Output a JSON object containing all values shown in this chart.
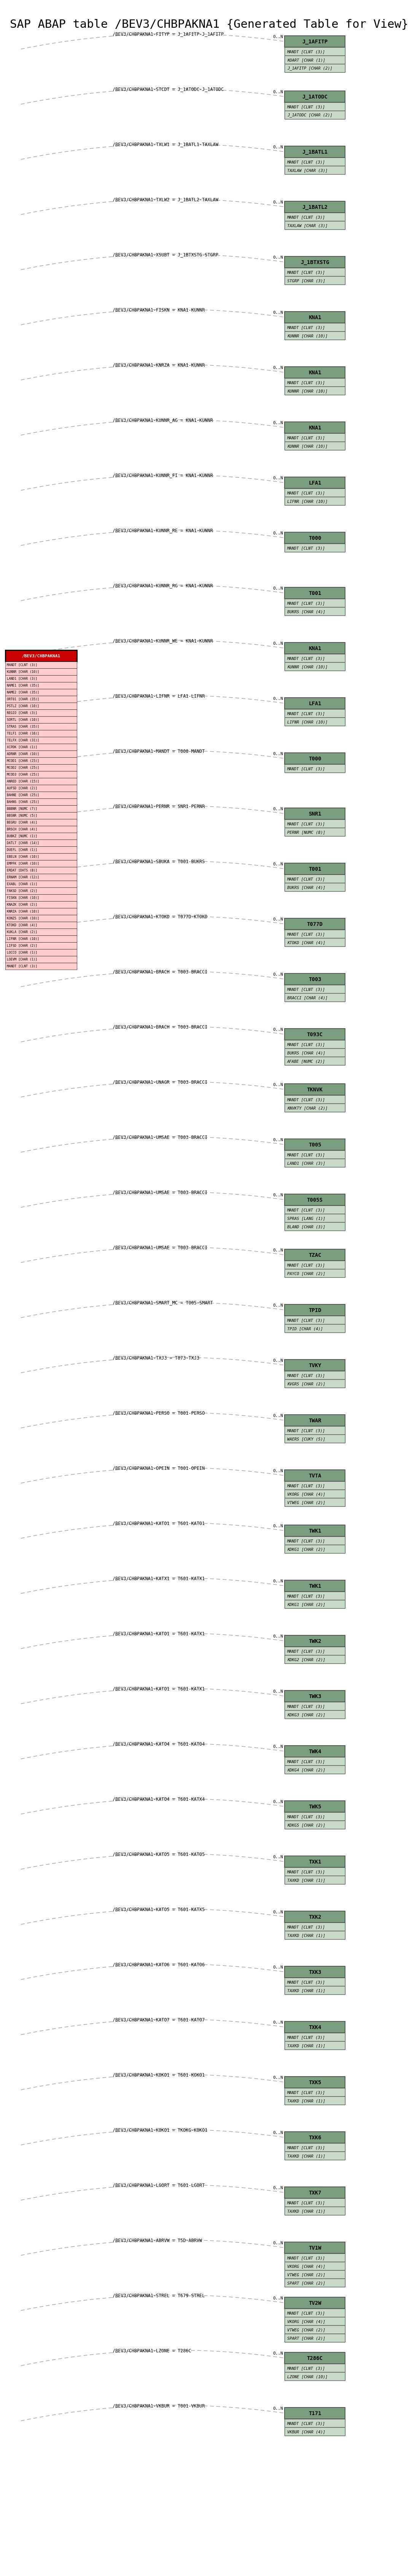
{
  "title": "SAP ABAP table /BEV3/CHBPAKNA1 {Generated Table for View}",
  "title_fontsize": 22,
  "bg_color": "#ffffff",
  "main_table": "/BEV3/CHBPAKNA1",
  "main_table_color": "#cc0000",
  "main_table_header_color": "#cc0000",
  "box_header_color": "#7a9e7e",
  "box_field_color": "#c8dac8",
  "box_border_color": "#555555",
  "line_color": "#aaaaaa",
  "relations": [
    {
      "label": "/BEV3/CHBPAKNA1-FITYP = J_1AFITP-J_1AFITP",
      "table_name": "J_1AFITP",
      "fields": [
        "MANDT [CLNT (3)]",
        "KOART [CHAR (1)]",
        "J_1AFITP [CHAR (2)]"
      ],
      "key_fields": [
        "MANDT",
        "KOART",
        "J_1AFITP"
      ],
      "cardinality": "0..N"
    },
    {
      "label": "/BEV3/CHBPAKNA1-STCDT = J_1ATODC-J_1ATODC",
      "table_name": "J_1ATODC",
      "fields": [
        "MANDT [CLNT (3)]",
        "J_1ATODC [CHAR (2)]"
      ],
      "key_fields": [
        "MANDT",
        "J_1ATODC"
      ],
      "cardinality": "0..N"
    },
    {
      "label": "/BEV3/CHBPAKNA1-TXLW1 = J_1BATL1-TAXLAW",
      "table_name": "J_1BATL1",
      "fields": [
        "MANDT [CLNT (3)]",
        "TAXLAW [CHAR (3)]"
      ],
      "key_fields": [
        "MANDT",
        "TAXLAW"
      ],
      "cardinality": "0..N"
    },
    {
      "label": "/BEV3/CHBPAKNA1-TXLW2 = J_1BATL2-TAXLAW",
      "table_name": "J_1BATL2",
      "fields": [
        "MANDT [CLNT (3)]",
        "TAXLAW [CHAR (3)]"
      ],
      "key_fields": [
        "MANDT",
        "TAXLAW"
      ],
      "cardinality": "0..N"
    },
    {
      "label": "/BEV3/CHBPAKNA1-XSUBT = J_1BTXSTG-STGRP",
      "table_name": "J_1BTXSTG",
      "fields": [
        "MANDT [CLNT (3)]",
        "STGRP [CHAR (3)]"
      ],
      "key_fields": [
        "MANDT",
        "STGRP"
      ],
      "cardinality": "0..N"
    },
    {
      "label": "/BEV3/CHBPAKNA1-FISKN = KNA1-KUNNR",
      "table_name": "KNA1",
      "fields": [
        "MANDT [CLNT (3)]",
        "KUNNR [CHAR (10)]"
      ],
      "key_fields": [
        "MANDT",
        "KUNNR"
      ],
      "cardinality": "0..N"
    },
    {
      "label": "/BEV3/CHBPAKNA1-KNRZA = KNA1-KUNNR",
      "table_name": "KNA1",
      "fields": [
        "MANDT [CLNT (3)]",
        "KUNNR [CHAR (10)]"
      ],
      "key_fields": [
        "MANDT",
        "KUNNR"
      ],
      "cardinality": "0..N"
    },
    {
      "label": "/BEV3/CHBPAKNA1-KUNNR_AG = KNA1-KUNNR",
      "table_name": "KNA1",
      "fields": [
        "MANDT [CLNT (3)]",
        "KUNNR [CHAR (10)]"
      ],
      "key_fields": [
        "MANDT",
        "KUNNR"
      ],
      "cardinality": "0..N"
    },
    {
      "label": "/BEV3/CHBPAKNA1-KUNNR_FI = KNA1-KUNNR",
      "table_name": "LFA1",
      "fields": [
        "MANDT [CLNT (3)]",
        "LIFNR [CHAR (10)]"
      ],
      "key_fields": [
        "MANDT",
        "LIFNR"
      ],
      "cardinality": "0..N"
    },
    {
      "label": "/BEV3/CHBPAKNA1-KUNNR_RE = KNA1-KUNNR",
      "table_name": "T000",
      "fields": [
        "MANDT [CLNT (3)]"
      ],
      "key_fields": [
        "MANDT"
      ],
      "cardinality": "0..N"
    },
    {
      "label": "/BEV3/CHBPAKNA1-KUNNR_RG = KNA1-KUNNR",
      "table_name": "T001",
      "fields": [
        "MANDT [CLNT (3)]",
        "BUKRS [CHAR (4)]"
      ],
      "key_fields": [
        "MANDT",
        "BUKRS"
      ],
      "cardinality": "0..N"
    },
    {
      "label": "/BEV3/CHBPAKNA1-KUNNR_WE = KNA1-KUNNR",
      "table_name": "KNA1",
      "fields": [
        "MANDT [CLNT (3)]",
        "KUNNR [CHAR (10)]"
      ],
      "key_fields": [
        "MANDT",
        "KUNNR"
      ],
      "cardinality": "0..N"
    },
    {
      "label": "/BEV3/CHBPAKNA1-LIFNR = LFA1-LIFNR",
      "table_name": "LFA1",
      "fields": [
        "MANDT [CLNT (3)]",
        "LIFNR [CHAR (10)]"
      ],
      "key_fields": [
        "MANDT",
        "LIFNR"
      ],
      "cardinality": "0..N"
    },
    {
      "label": "/BEV3/CHBPAKNA1-MANDT = T000-MANDT",
      "table_name": "T000",
      "fields": [
        "MANDT [CLNT (3)]"
      ],
      "key_fields": [
        "MANDT"
      ],
      "cardinality": "0..N"
    },
    {
      "label": "/BEV3/CHBPAKNA1-PERNR = SNR1-PERNR",
      "table_name": "SNR1",
      "fields": [
        "MANDT [CLNT (3)]",
        "PERNR [NUMC (8)]"
      ],
      "key_fields": [
        "MANDT",
        "PERNR"
      ],
      "cardinality": "0..N"
    },
    {
      "label": "/BEV3/CHBPAKNA1-SBUKA = T001-BUKRS",
      "table_name": "T001",
      "fields": [
        "MANDT [CLNT (3)]",
        "BUKRS [CHAR (4)]"
      ],
      "key_fields": [
        "MANDT",
        "BUKRS"
      ],
      "cardinality": "0..N"
    },
    {
      "label": "/BEV3/CHBPAKNA1-KTOKD = T077D-KTOKD",
      "table_name": "T077D",
      "fields": [
        "MANDT [CLNT (3)]",
        "KTOKD [CHAR (4)]"
      ],
      "key_fields": [
        "MANDT",
        "KTOKD"
      ],
      "cardinality": "0..N"
    },
    {
      "label": "/BEV3/CHBPAKNA1-BRACH = T003-BRACCI",
      "table_name": "T003",
      "fields": [
        "MANDT [CLNT (3)]",
        "BRACCI [CHAR (4)]"
      ],
      "key_fields": [
        "MANDT",
        "BRACCI"
      ],
      "cardinality": "0..N"
    },
    {
      "label": "/BEV3/CHBPAKNA1-BRACH = T003-BRACCI",
      "table_name": "T093C",
      "fields": [
        "MANDT [CLNT (3)]",
        "BUKRS [CHAR (4)]",
        "AFABE [NUMC (2)]"
      ],
      "key_fields": [
        "MANDT",
        "BUKRS",
        "AFABE"
      ],
      "cardinality": "0..N"
    },
    {
      "label": "/BEV3/CHBPAKNA1-UNAGR = T003-BRACCI",
      "table_name": "TKNVK",
      "fields": [
        "MANDT [CLNT (3)]",
        "KNVKTY [CHAR (2)]"
      ],
      "key_fields": [
        "MANDT",
        "KNVKTY"
      ],
      "cardinality": "0..N"
    },
    {
      "label": "/BEV3/CHBPAKNA1-UMSAE = T003-BRACCI",
      "table_name": "T005",
      "fields": [
        "MANDT [CLNT (3)]",
        "LAND1 [CHAR (3)]"
      ],
      "key_fields": [
        "MANDT",
        "LAND1"
      ],
      "cardinality": "0..N"
    },
    {
      "label": "/BEV3/CHBPAKNA1-UMSAE = T003-BRACCI",
      "table_name": "T005S",
      "fields": [
        "MANDT [CLNT (3)]",
        "SPRAS [LANG (1)]",
        "BLAND [CHAR (3)]"
      ],
      "key_fields": [
        "MANDT",
        "SPRAS",
        "BLAND"
      ],
      "cardinality": "0..N"
    },
    {
      "label": "/BEV3/CHBPAKNA1-UMSAE = T003-BRACCI",
      "table_name": "TZAC",
      "fields": [
        "MANDT [CLNT (3)]",
        "PAYCO [CHAR (2)]"
      ],
      "key_fields": [
        "MANDT",
        "PAYCO"
      ],
      "cardinality": "0..N"
    },
    {
      "label": "/BEV3/CHBPAKNA1-SMART_MC = T005-SMART",
      "table_name": "TPID",
      "fields": [
        "MANDT [CLNT (3)]",
        "TPID [CHAR (4)]"
      ],
      "key_fields": [
        "MANDT",
        "TPID"
      ],
      "cardinality": "0..N"
    },
    {
      "label": "/BEV3/CHBPAKNA1-TXJ3 = T073-TXJ3",
      "table_name": "TVKY",
      "fields": [
        "MANDT [CLNT (3)]",
        "KVGR5 [CHAR (2)]"
      ],
      "key_fields": [
        "MANDT",
        "KVGR5"
      ],
      "cardinality": "0..N"
    },
    {
      "label": "/BEV3/CHBPAKNA1-PERSO = T001-PERSO",
      "table_name": "TWAR",
      "fields": [
        "MANDT [CLNT (3)]",
        "WAERS [CUKY (5)]"
      ],
      "key_fields": [
        "MANDT",
        "WAERS"
      ],
      "cardinality": "0..N"
    },
    {
      "label": "/BEV3/CHBPAKNA1-OPEIN = T001-OPEIN",
      "table_name": "TVTA",
      "fields": [
        "MANDT [CLNT (3)]",
        "VKORG [CHAR (4)]",
        "VTWEG [CHAR (2)]"
      ],
      "key_fields": [
        "MANDT",
        "VKORG",
        "VTWEG"
      ],
      "cardinality": "0..N"
    },
    {
      "label": "/BEV3/CHBPAKNA1-KATO1 = T601-KATO1",
      "table_name": "TWK1",
      "fields": [
        "MANDT [CLNT (3)]",
        "KDKG1 [CHAR (2)]"
      ],
      "key_fields": [
        "MANDT",
        "KDKG1"
      ],
      "cardinality": "0..N"
    },
    {
      "label": "/BEV3/CHBPAKNA1-KATX1 = T601-KATX1",
      "table_name": "TWK1",
      "fields": [
        "MANDT [CLNT (3)]",
        "KDKG1 [CHAR (2)]"
      ],
      "key_fields": [
        "MANDT",
        "KDKG1"
      ],
      "cardinality": "0..N"
    },
    {
      "label": "/BEV3/CHBPAKNA1-KATO1 = T601-KATX1",
      "table_name": "TWK2",
      "fields": [
        "MANDT [CLNT (3)]",
        "KDKG2 [CHAR (2)]"
      ],
      "key_fields": [
        "MANDT",
        "KDKG2"
      ],
      "cardinality": "0..N"
    },
    {
      "label": "/BEV3/CHBPAKNA1-KATO1 = T601-KATX1",
      "table_name": "TWK3",
      "fields": [
        "MANDT [CLNT (3)]",
        "KDKG3 [CHAR (2)]"
      ],
      "key_fields": [
        "MANDT",
        "KDKG3"
      ],
      "cardinality": "0..N"
    },
    {
      "label": "/BEV3/CHBPAKNA1-KATO4 = T601-KATO4",
      "table_name": "TWK4",
      "fields": [
        "MANDT [CLNT (3)]",
        "KDKG4 [CHAR (2)]"
      ],
      "key_fields": [
        "MANDT",
        "KDKG4"
      ],
      "cardinality": "0..N"
    },
    {
      "label": "/BEV3/CHBPAKNA1-KATO4 = T601-KATX4",
      "table_name": "TWK5",
      "fields": [
        "MANDT [CLNT (3)]",
        "KDKG5 [CHAR (2)]"
      ],
      "key_fields": [
        "MANDT",
        "KDKG5"
      ],
      "cardinality": "0..N"
    },
    {
      "label": "/BEV3/CHBPAKNA1-KATO5 = T601-KATO5",
      "table_name": "TXK1",
      "fields": [
        "MANDT [CLNT (3)]",
        "TAXKD [CHAR (1)]"
      ],
      "key_fields": [
        "MANDT",
        "TAXKD"
      ],
      "cardinality": "0..N"
    },
    {
      "label": "/BEV3/CHBPAKNA1-KATO5 = T601-KATX5",
      "table_name": "TXK2",
      "fields": [
        "MANDT [CLNT (3)]",
        "TAXKD [CHAR (1)]"
      ],
      "key_fields": [
        "MANDT",
        "TAXKD"
      ],
      "cardinality": "0..N"
    },
    {
      "label": "/BEV3/CHBPAKNA1-KATO6 = T601-KATO6",
      "table_name": "TXK3",
      "fields": [
        "MANDT [CLNT (3)]",
        "TAXKD [CHAR (1)]"
      ],
      "key_fields": [
        "MANDT",
        "TAXKD"
      ],
      "cardinality": "0..N"
    },
    {
      "label": "/BEV3/CHBPAKNA1-KATO7 = T601-KATO7",
      "table_name": "TXK4",
      "fields": [
        "MANDT [CLNT (3)]",
        "TAXKD [CHAR (1)]"
      ],
      "key_fields": [
        "MANDT",
        "TAXKD"
      ],
      "cardinality": "0..N"
    },
    {
      "label": "/BEV3/CHBPAKNA1-KOKO1 = T601-KOKO1",
      "table_name": "TXK5",
      "fields": [
        "MANDT [CLNT (3)]",
        "TAXKD [CHAR (1)]"
      ],
      "key_fields": [
        "MANDT",
        "TAXKD"
      ],
      "cardinality": "0..N"
    },
    {
      "label": "/BEV3/CHBPAKNA1-KOKO1 = TKOKG-KOKO1",
      "table_name": "TXK6",
      "fields": [
        "MANDT [CLNT (3)]",
        "TAXKD [CHAR (1)]"
      ],
      "key_fields": [
        "MANDT",
        "TAXKD"
      ],
      "cardinality": "0..N"
    },
    {
      "label": "/BEV3/CHBPAKNA1-LGORT = T601-LGORT",
      "table_name": "TXK7",
      "fields": [
        "MANDT [CLNT (3)]",
        "TAXKD [CHAR (1)]"
      ],
      "key_fields": [
        "MANDT",
        "TAXKD"
      ],
      "cardinality": "0..N"
    },
    {
      "label": "/BEV3/CHBPAKNA1-ABRVW = T5D-ABRVW",
      "table_name": "TV1W",
      "fields": [
        "MANDT [CLNT (3)]",
        "VKORG [CHAR (4)]",
        "VTWEG [CHAR (2)]",
        "SPART [CHAR (2)]"
      ],
      "key_fields": [
        "MANDT",
        "VKORG",
        "VTWEG",
        "SPART"
      ],
      "cardinality": "0..N"
    },
    {
      "label": "/BEV3/CHBPAKNA1-STREL = T679-STREL",
      "table_name": "TV2W",
      "fields": [
        "MANDT [CLNT (3)]",
        "VKORG [CHAR (4)]",
        "VTWEG [CHAR (2)]",
        "SPART [CHAR (2)]"
      ],
      "key_fields": [
        "MANDT",
        "VKORG",
        "VTWEG",
        "SPART"
      ],
      "cardinality": "0..N"
    },
    {
      "label": "/BEV3/CHBPAKNA1-LZONE = T286C",
      "table_name": "T286C",
      "fields": [
        "MANDT [CLNT (3)]",
        "LZONE [CHAR (10)]"
      ],
      "key_fields": [
        "MANDT",
        "LZONE"
      ],
      "cardinality": "0..N"
    },
    {
      "label": "/BEV3/CHBPAKNA1-VKBUR = T001-VKBUR",
      "table_name": "T171",
      "fields": [
        "MANDT [CLNT (3)]",
        "VKBUR [CHAR (4)]"
      ],
      "key_fields": [
        "MANDT",
        "VKBUR"
      ],
      "cardinality": "0..N"
    }
  ],
  "main_table_fields": [
    "MANDT [CLNT (3)]",
    "KUNNR [CHAR (10)]",
    "LAND1 [CHAR (3)]",
    "NAME1 [CHAR (35)]",
    "NAME2 [CHAR (35)]",
    "ORT01 [CHAR (35)]",
    "PSTLZ [CHAR (10)]",
    "REGIO [CHAR (3)]",
    "SORTL [CHAR (10)]",
    "STRAS [CHAR (35)]",
    "TELF1 [CHAR (16)]",
    "TELFX [CHAR (31)]",
    "XCPDK [CHAR (1)]",
    "ADRNR [CHAR (10)]",
    "MCOD1 [CHAR (25)]",
    "MCOD2 [CHAR (25)]",
    "MCOD3 [CHAR (25)]",
    "ANRED [CHAR (15)]",
    "AUFSD [CHAR (2)]",
    "BAHNE [CHAR (25)]",
    "BAHNS [CHAR (25)]",
    "BBBNR [NUMC (7)]",
    "BBSNR [NUMC (5)]",
    "BEGRU [CHAR (4)]",
    "BRSCH [CHAR (4)]",
    "BUBKZ [NUMC (1)]",
    "DATLT [CHAR (14)]",
    "DUEFL [CHAR (1)]",
    "EBELN [CHAR (10)]",
    "EMPFK [CHAR (10)]",
    "ERDAT [DATS (8)]",
    "ERNAM [CHAR (12)]",
    "EXABL [CHAR (1)]",
    "FAKSD [CHAR (2)]",
    "FISKN [CHAR (10)]",
    "KNAZK [CHAR (2)]",
    "KNRZA [CHAR (10)]",
    "KONZS [CHAR (10)]",
    "KTOKD [CHAR (4)]",
    "KUKLA [CHAR (2)]",
    "LIFNR [CHAR (10)]",
    "LIFSD [CHAR (2)]",
    "LOCCO [CHAR (1)]",
    "LOEVM [CHAR (1)]",
    "MANDT [CLNT (3)]"
  ]
}
